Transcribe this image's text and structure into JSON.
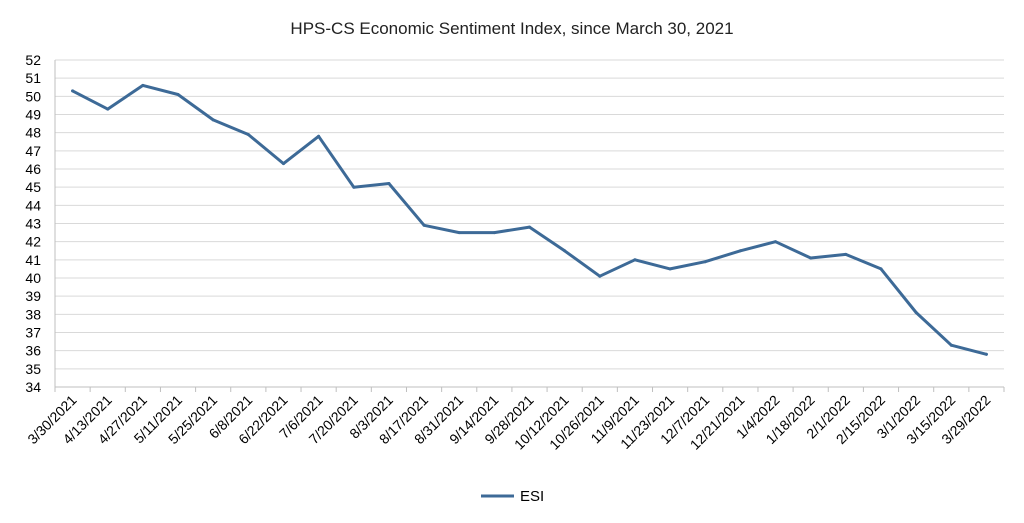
{
  "chart_data": {
    "type": "line",
    "title": "HPS-CS Economic Sentiment Index, since March 30, 2021",
    "xlabel": "",
    "ylabel": "",
    "ylim": [
      34,
      52
    ],
    "yticks": [
      34,
      35,
      36,
      37,
      38,
      39,
      40,
      41,
      42,
      43,
      44,
      45,
      46,
      47,
      48,
      49,
      50,
      51,
      52
    ],
    "grid": true,
    "legend_position": "bottom",
    "categories": [
      "3/30/2021",
      "4/13/2021",
      "4/27/2021",
      "5/11/2021",
      "5/25/2021",
      "6/8/2021",
      "6/22/2021",
      "7/6/2021",
      "7/20/2021",
      "8/3/2021",
      "8/17/2021",
      "8/31/2021",
      "9/14/2021",
      "9/28/2021",
      "10/12/2021",
      "10/26/2021",
      "11/9/2021",
      "11/23/2021",
      "12/7/2021",
      "12/21/2021",
      "1/4/2022",
      "1/18/2022",
      "2/1/2022",
      "2/15/2022",
      "3/1/2022",
      "3/15/2022",
      "3/29/2022"
    ],
    "series": [
      {
        "name": "ESI",
        "color": "#3d6a97",
        "values": [
          50.3,
          49.3,
          50.6,
          50.1,
          48.7,
          47.9,
          46.3,
          47.8,
          45.0,
          45.2,
          42.9,
          42.5,
          42.5,
          42.8,
          41.5,
          40.1,
          41.0,
          40.5,
          40.9,
          41.5,
          42.0,
          41.1,
          41.3,
          40.5,
          38.1,
          36.3,
          35.8
        ]
      }
    ]
  }
}
